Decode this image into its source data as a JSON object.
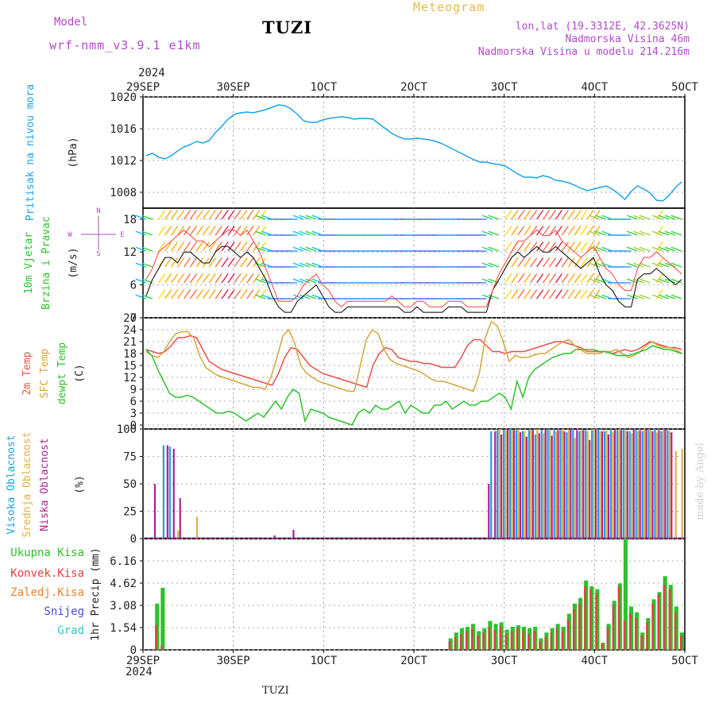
{
  "header": {
    "model_label": "Model",
    "model_name": "wrf-nmm_v3.9.1 e1km",
    "title": "TUZI",
    "meteogram": "Meteogram",
    "lonlat": "lon,lat (19.3312E, 42.3625N)",
    "elevation": "Nadmorska Visina 46m",
    "model_elevation": "Nadmorska Visina u modelu 214.216m",
    "credit": "made by Angel",
    "bottom_title": "TUZI",
    "year": "2024"
  },
  "colors": {
    "pressure": "#1aa3e8",
    "temp2m": "#e8504a",
    "sfc_temp": "#d4a63a",
    "dewpt": "#2cc22c",
    "precip_total": "#2cc22c",
    "precip_conv": "#e04040",
    "cloud_high": "#1e9ee6",
    "cloud_mid": "#e0b040",
    "cloud_low": "#b02090",
    "label_purple": "#b04ac8",
    "label_orange": "#e8b84a"
  },
  "chart_data": [
    {
      "type": "line",
      "name": "pressure",
      "ylabel_side": "Pritisak na nivou mora",
      "ylabel_units": "(hPa)",
      "ylim": [
        1006,
        1020
      ],
      "yticks": [
        "1008",
        "1012",
        "1016",
        "1020"
      ],
      "xticks": [
        "29SEP",
        "30SEP",
        "1OCT",
        "2OCT",
        "3OCT",
        "4OCT",
        "5OCT"
      ],
      "x_hours_step": 3,
      "values": [
        1012.6,
        1012.9,
        1012.4,
        1012.2,
        1012.6,
        1013.2,
        1013.7,
        1014.0,
        1014.4,
        1014.2,
        1014.5,
        1015.5,
        1016.3,
        1017.2,
        1017.8,
        1018.0,
        1018.1,
        1018.0,
        1018.2,
        1018.4,
        1018.7,
        1019.0,
        1018.9,
        1018.5,
        1017.8,
        1017.0,
        1016.8,
        1016.8,
        1017.1,
        1017.3,
        1017.4,
        1017.5,
        1017.4,
        1017.2,
        1017.3,
        1017.3,
        1017.2,
        1016.6,
        1016.0,
        1015.4,
        1015.0,
        1014.7,
        1014.7,
        1014.8,
        1014.7,
        1014.6,
        1014.4,
        1014.1,
        1013.7,
        1013.3,
        1012.9,
        1012.5,
        1012.1,
        1011.8,
        1011.8,
        1011.6,
        1011.5,
        1011.3,
        1010.8,
        1010.3,
        1009.9,
        1009.9,
        1009.8,
        1010.1,
        1009.9,
        1009.5,
        1009.4,
        1009.2,
        1008.9,
        1008.5,
        1008.2,
        1008.4,
        1008.6,
        1008.8,
        1008.4,
        1007.8,
        1007.1,
        1008.1,
        1008.8,
        1008.4,
        1007.9,
        1007.0,
        1006.9,
        1007.6,
        1008.6,
        1009.3
      ]
    },
    {
      "type": "line",
      "name": "wind",
      "ylabel_side": [
        "10m Vjetar",
        "Brzina i Pravac"
      ],
      "ylabel_units": "(m/s)",
      "compass": [
        "N",
        "W",
        "E",
        "S"
      ],
      "ylim": [
        0,
        20
      ],
      "yticks": [
        "0",
        "6",
        "12",
        "18"
      ],
      "speed_10m": [
        4,
        7,
        9,
        11,
        11,
        10,
        12,
        12,
        11,
        10,
        10,
        12,
        13,
        13,
        12,
        11,
        12,
        11,
        9,
        7,
        4,
        2,
        1,
        1,
        3,
        4,
        5,
        6,
        4,
        2,
        1,
        1,
        2,
        2,
        2,
        2,
        2,
        2,
        2,
        2,
        2,
        1,
        1,
        2,
        1,
        1,
        1,
        1,
        2,
        2,
        2,
        1,
        1,
        1,
        1,
        5,
        7,
        9,
        11,
        12,
        11,
        12,
        13,
        12,
        12,
        13,
        12,
        11,
        10,
        9,
        10,
        11,
        8,
        6,
        5,
        3,
        2,
        2,
        7,
        8,
        8,
        9,
        8,
        7,
        6,
        7
      ],
      "gust": [
        7,
        9,
        12,
        13,
        14,
        15,
        16,
        15,
        14,
        14,
        13,
        14,
        15,
        16,
        16,
        15,
        16,
        14,
        12,
        9,
        6,
        3,
        3,
        3,
        4,
        6,
        7,
        8,
        6,
        5,
        3,
        2,
        3,
        3,
        3,
        3,
        3,
        3,
        3,
        4,
        3,
        2,
        2,
        3,
        3,
        2,
        2,
        2,
        3,
        3,
        3,
        2,
        2,
        2,
        2,
        5,
        8,
        10,
        12,
        14,
        14,
        15,
        16,
        15,
        15,
        16,
        14,
        13,
        12,
        11,
        12,
        13,
        11,
        9,
        8,
        6,
        5,
        5,
        9,
        11,
        11,
        12,
        11,
        10,
        9,
        8
      ]
    },
    {
      "type": "line",
      "name": "temperature",
      "ylabel_side": [
        "2m Temp",
        "SFC Temp",
        "dewpt Temp"
      ],
      "ylabel_units": "(C)",
      "ylim": [
        -1,
        27
      ],
      "yticks": [
        "0",
        "3",
        "6",
        "9",
        "12",
        "15",
        "18",
        "21",
        "24",
        "27"
      ],
      "series": [
        {
          "name": "2m Temp",
          "values": [
            19,
            18.5,
            18,
            18.5,
            20,
            22,
            22,
            22.5,
            22,
            19,
            16,
            15,
            14,
            13.5,
            13,
            12.5,
            12,
            11.5,
            11,
            10.5,
            10,
            13,
            17,
            19.5,
            19,
            17,
            15,
            14,
            13,
            12.5,
            12,
            11.5,
            11,
            10.5,
            10,
            9.5,
            15,
            18,
            19.5,
            19,
            17,
            16.5,
            16,
            16,
            15.5,
            15.5,
            15,
            14.5,
            14.5,
            14.5,
            17,
            20,
            21.5,
            21.5,
            20,
            18.5,
            18.5,
            18,
            18.5,
            18.5,
            18.5,
            19,
            19.5,
            20,
            20.5,
            21,
            21,
            20.5,
            20,
            19.5,
            18.5,
            18.5,
            18.5,
            18.5,
            18,
            18.5,
            19,
            18.5,
            19,
            20,
            21,
            20.5,
            20,
            19.5,
            19.5,
            19
          ]
        },
        {
          "name": "SFC Temp",
          "values": [
            18.5,
            17.5,
            17,
            18.5,
            21,
            23,
            23.5,
            23.5,
            22,
            17.5,
            14.5,
            13.5,
            12.5,
            12,
            11.5,
            11,
            10.5,
            10,
            9.5,
            9.5,
            9,
            12,
            17,
            22.5,
            24,
            20.5,
            15,
            13,
            12,
            11,
            10.5,
            10,
            9.5,
            9,
            8.5,
            8.5,
            15,
            21.5,
            24,
            23,
            19,
            16.5,
            15.5,
            15,
            14.5,
            14,
            13.5,
            12.5,
            11.5,
            11,
            11,
            10.5,
            10,
            9.5,
            9,
            8.5,
            13,
            22,
            26,
            25,
            21,
            16,
            17.5,
            17,
            17,
            17.5,
            18,
            18,
            19,
            20,
            21,
            21.5,
            20,
            19,
            18,
            18,
            18,
            18.5,
            18.5,
            19,
            18,
            17,
            17.5,
            18.5,
            20,
            21,
            20,
            19.5,
            19.5,
            19,
            18
          ]
        },
        {
          "name": "dewpt Temp",
          "values": [
            19,
            17.5,
            14,
            11,
            8,
            7,
            7,
            7.5,
            7,
            6,
            5,
            4,
            3,
            3,
            3.5,
            3,
            2,
            1,
            2,
            3,
            2,
            4,
            6,
            4,
            7,
            9,
            8,
            1,
            4,
            3.5,
            3,
            2,
            1.5,
            1,
            0.5,
            0,
            3,
            4,
            3,
            5,
            4,
            4,
            5,
            6,
            3,
            5,
            4,
            3,
            3,
            5,
            5,
            6,
            4,
            5,
            6,
            5,
            5,
            6,
            6,
            7,
            8,
            7,
            4,
            11,
            7,
            12,
            14,
            15,
            16,
            17,
            17.5,
            18,
            18,
            19,
            19,
            19,
            19,
            18.5,
            18.5,
            18,
            17.5,
            17.5,
            17.5,
            18,
            18.5,
            19,
            20,
            19.5,
            19,
            19,
            18.5,
            18
          ]
        }
      ]
    },
    {
      "type": "bar",
      "name": "cloud_cover",
      "ylabel_side": [
        "Visoka Oblacnost",
        "Srednja Oblacnost",
        "Niska Oblacnost"
      ],
      "ylabel_units": "(%)",
      "ylim": [
        0,
        100
      ],
      "yticks": [
        "0",
        "25",
        "50",
        "75",
        "100"
      ],
      "series": [
        {
          "name": "Visoka Oblacnost",
          "values": [
            0,
            0,
            0,
            85,
            84,
            0,
            0,
            0,
            0,
            0,
            0,
            0,
            0,
            0,
            0,
            0,
            0,
            0,
            0,
            0,
            0,
            0,
            0,
            0,
            0,
            0,
            0,
            0,
            0,
            0,
            0,
            0,
            0,
            0,
            0,
            0,
            0,
            0,
            0,
            0,
            0,
            0,
            0,
            0,
            0,
            0,
            0,
            0,
            0,
            0,
            0,
            0,
            0,
            0,
            0,
            98,
            99,
            99,
            100,
            99,
            98,
            99,
            95,
            99,
            100,
            99,
            99,
            97,
            99,
            98,
            99,
            99,
            100,
            98,
            99,
            99,
            100,
            98,
            99,
            98,
            99,
            100,
            98,
            99,
            0,
            0
          ]
        },
        {
          "name": "Srednja Oblacnost",
          "values": [
            0,
            0,
            0,
            0,
            0,
            7,
            0,
            0,
            20,
            0,
            0,
            0,
            0,
            0,
            0,
            0,
            0,
            0,
            0,
            0,
            0,
            0,
            0,
            0,
            0,
            0,
            0,
            0,
            0,
            0,
            0,
            0,
            0,
            0,
            0,
            0,
            0,
            0,
            0,
            0,
            0,
            0,
            0,
            0,
            0,
            0,
            0,
            0,
            0,
            0,
            0,
            0,
            0,
            0,
            0,
            0,
            100,
            99,
            99,
            100,
            98,
            99,
            100,
            96,
            99,
            98,
            100,
            99,
            92,
            99,
            98,
            100,
            98,
            99,
            97,
            100,
            99,
            96,
            98,
            100,
            99,
            97,
            99,
            98,
            80,
            82
          ]
        },
        {
          "name": "Niska Oblacnost",
          "values": [
            0,
            50,
            0,
            85,
            82,
            37,
            0,
            0,
            0,
            0,
            0,
            0,
            0,
            0,
            0,
            0,
            0,
            0,
            0,
            0,
            3,
            0,
            0,
            8,
            0,
            0,
            0,
            0,
            0,
            0,
            0,
            0,
            0,
            0,
            0,
            0,
            0,
            0,
            0,
            0,
            0,
            0,
            0,
            0,
            0,
            0,
            0,
            0,
            0,
            0,
            0,
            0,
            0,
            0,
            50,
            98,
            95,
            100,
            99,
            97,
            93,
            99,
            96,
            100,
            94,
            99,
            98,
            100,
            99,
            99,
            90,
            100,
            98,
            95,
            100,
            99,
            98,
            100,
            99,
            100,
            98,
            99,
            100,
            97,
            0,
            0
          ]
        }
      ]
    },
    {
      "type": "bar",
      "name": "precipitation",
      "ylabel_side": [
        "Ukupna Kisa",
        "Konvek.Kisa",
        "Zaledj.Kisa",
        "Snijeg",
        "Grad"
      ],
      "ylabel_units": "1hr Precip (mm)",
      "ylim": [
        0,
        7.7
      ],
      "yticks": [
        "0",
        "1.54",
        "3.08",
        "4.62",
        "6.16"
      ],
      "xticks": [
        "29SEP",
        "30SEP",
        "1OCT",
        "2OCT",
        "3OCT",
        "4OCT",
        "5OCT"
      ],
      "series": [
        {
          "name": "Ukupna Kisa",
          "values": [
            0,
            0,
            3.2,
            4.3,
            0,
            0,
            0,
            0,
            0,
            0,
            0,
            0,
            0,
            0,
            0,
            0,
            0,
            0,
            0,
            0,
            0,
            0,
            0,
            0,
            0,
            0,
            0,
            0,
            0,
            0,
            0,
            0,
            0,
            0,
            0,
            0,
            0,
            0,
            0,
            0,
            0,
            0,
            0,
            0,
            0,
            0,
            0,
            0,
            0,
            0,
            0,
            0,
            0,
            0,
            0.8,
            1.2,
            1.5,
            1.6,
            1.8,
            1.3,
            1.5,
            2.0,
            1.8,
            1.9,
            1.4,
            1.6,
            1.7,
            1.6,
            1.5,
            1.6,
            0.8,
            1.2,
            1.5,
            1.8,
            1.6,
            2.5,
            3.2,
            3.6,
            4.8,
            4.4,
            4.2,
            0.5,
            1.8,
            3.4,
            4.6,
            7.7,
            3.0,
            2.6,
            1.2,
            2.2,
            3.5,
            4.0,
            5.1,
            4.5,
            3.0,
            1.2
          ]
        },
        {
          "name": "Konvek.Kisa",
          "values": [
            0,
            0,
            1.7,
            0.3,
            0,
            0,
            0,
            0,
            0,
            0,
            0,
            0,
            0,
            0,
            0,
            0,
            0,
            0,
            0,
            0,
            0,
            0,
            0,
            0,
            0,
            0,
            0,
            0,
            0,
            0,
            0,
            0,
            0,
            0,
            0,
            0,
            0,
            0,
            0,
            0,
            0,
            0,
            0,
            0,
            0,
            0,
            0,
            0,
            0,
            0,
            0,
            0,
            0,
            0,
            0.6,
            0.9,
            1.1,
            1.3,
            1.5,
            1.0,
            1.2,
            1.6,
            1.4,
            1.6,
            1.1,
            1.3,
            1.5,
            1.3,
            1.1,
            1.3,
            0.6,
            0.9,
            1.2,
            1.5,
            1.3,
            2.1,
            2.8,
            3.2,
            4.4,
            4.2,
            3.9,
            0.4,
            1.5,
            3.1,
            4.4,
            2.0,
            2.5,
            2.2,
            1.0,
            1.9,
            3.2,
            3.8,
            4.5,
            4.2,
            2.6,
            1.0
          ]
        }
      ]
    }
  ]
}
